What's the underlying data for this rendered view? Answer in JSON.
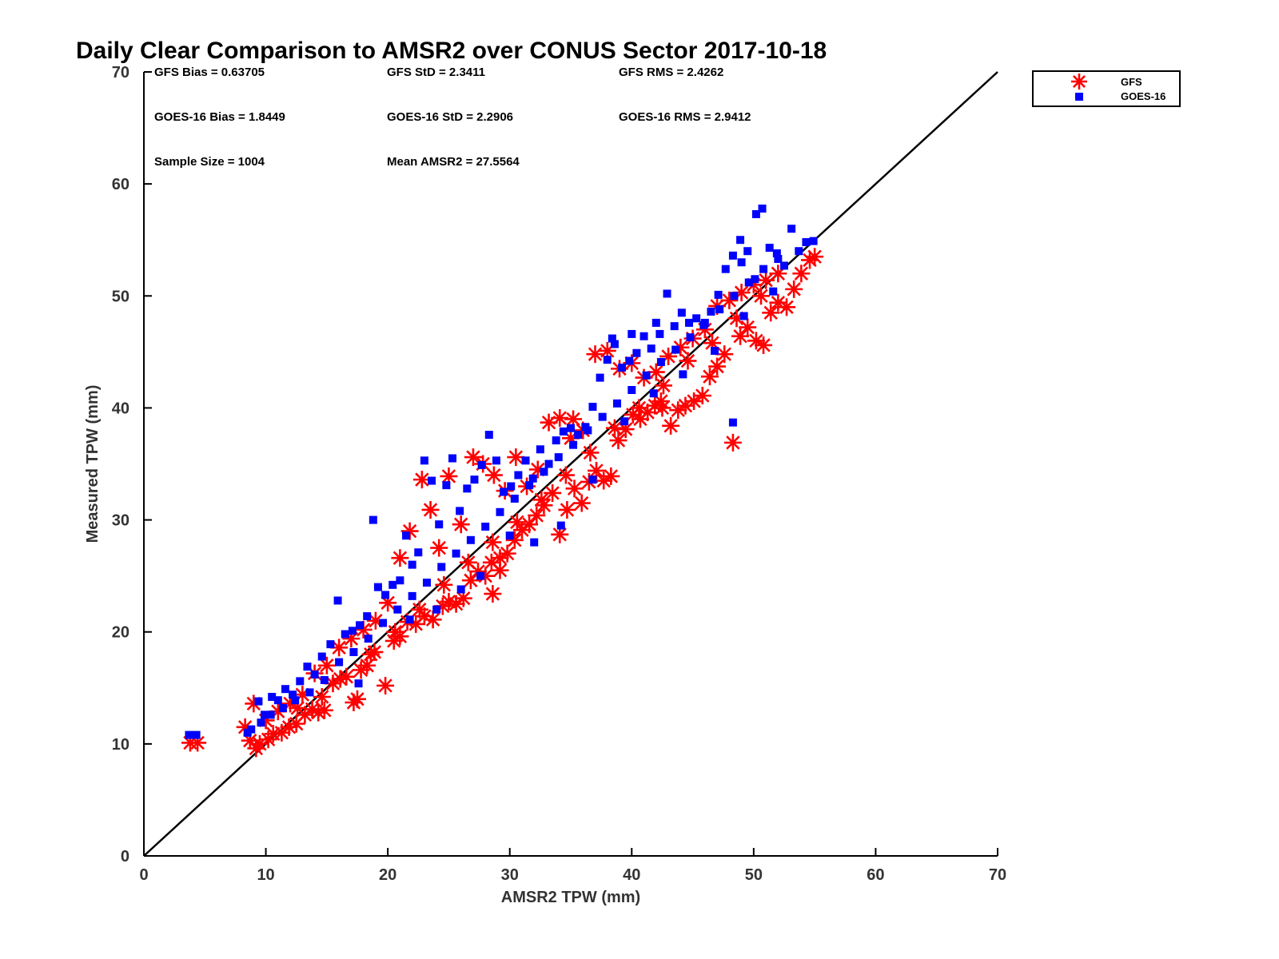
{
  "chart_data": {
    "type": "scatter",
    "title": "Daily Clear Comparison to AMSR2 over CONUS Sector 2017-10-18",
    "xlabel": "AMSR2 TPW (mm)",
    "ylabel": "Measured TPW (mm)",
    "xlim": [
      0,
      70
    ],
    "ylim": [
      0,
      70
    ],
    "xticks": [
      0,
      10,
      20,
      30,
      40,
      50,
      60,
      70
    ],
    "yticks": [
      0,
      10,
      20,
      30,
      40,
      50,
      60,
      70
    ],
    "grid": false,
    "legend_position": "outside-top-right",
    "reference_line": {
      "from": [
        0,
        0
      ],
      "to": [
        70,
        70
      ],
      "color": "#000000",
      "label": "1:1 line"
    },
    "stats": [
      {
        "id": "gfs-bias",
        "text": "GFS Bias = 0.63705"
      },
      {
        "id": "gfs-std",
        "text": "GFS StD = 2.3411"
      },
      {
        "id": "gfs-rms",
        "text": "GFS RMS = 2.4262"
      },
      {
        "id": "goes-bias",
        "text": "GOES-16 Bias = 1.8449"
      },
      {
        "id": "goes-std",
        "text": "GOES-16 StD = 2.2906"
      },
      {
        "id": "goes-rms",
        "text": "GOES-16 RMS = 2.9412"
      },
      {
        "id": "sample-size",
        "text": "Sample Size = 1004"
      },
      {
        "id": "mean-amsr2",
        "text": "Mean AMSR2 = 27.5564"
      }
    ],
    "series": [
      {
        "name": "GFS",
        "marker": "asterisk",
        "color": "#ff0000",
        "points": [
          [
            3.8,
            10.1
          ],
          [
            4.4,
            10.1
          ],
          [
            8.7,
            10.3
          ],
          [
            9.2,
            9.6
          ],
          [
            9.5,
            10.0
          ],
          [
            10.2,
            10.4
          ],
          [
            10.6,
            10.9
          ],
          [
            11.3,
            11.0
          ],
          [
            11.9,
            11.5
          ],
          [
            12.5,
            11.8
          ],
          [
            13.2,
            12.6
          ],
          [
            13.8,
            13.1
          ],
          [
            14.3,
            12.8
          ],
          [
            14.8,
            13.0
          ],
          [
            15.5,
            15.4
          ],
          [
            16.1,
            15.8
          ],
          [
            17.2,
            13.7
          ],
          [
            17.5,
            14.0
          ],
          [
            17.8,
            16.6
          ],
          [
            18.3,
            17.0
          ],
          [
            18.9,
            18.2
          ],
          [
            19.8,
            15.2
          ],
          [
            20.5,
            19.2
          ],
          [
            21.0,
            19.6
          ],
          [
            21.6,
            20.9
          ],
          [
            22.3,
            20.7
          ],
          [
            23.0,
            21.4
          ],
          [
            23.7,
            21.1
          ],
          [
            24.5,
            22.3
          ],
          [
            25.0,
            22.7
          ],
          [
            25.6,
            22.5
          ],
          [
            26.2,
            23.0
          ],
          [
            26.8,
            24.6
          ],
          [
            27.4,
            25.4
          ],
          [
            28.0,
            25.0
          ],
          [
            28.5,
            26.2
          ],
          [
            29.2,
            25.5
          ],
          [
            29.8,
            27.0
          ],
          [
            30.4,
            28.2
          ],
          [
            31.0,
            29.1
          ],
          [
            31.6,
            29.6
          ],
          [
            32.2,
            30.4
          ],
          [
            32.8,
            31.3
          ],
          [
            33.5,
            32.4
          ],
          [
            34.1,
            28.7
          ],
          [
            34.7,
            30.9
          ],
          [
            35.3,
            32.8
          ],
          [
            35.9,
            31.5
          ],
          [
            36.5,
            33.4
          ],
          [
            37.1,
            34.4
          ],
          [
            37.7,
            33.5
          ],
          [
            38.3,
            33.9
          ],
          [
            38.9,
            37.1
          ],
          [
            39.5,
            38.1
          ],
          [
            40.1,
            39.4
          ],
          [
            40.7,
            39.0
          ],
          [
            41.3,
            39.6
          ],
          [
            41.9,
            40.2
          ],
          [
            42.5,
            40.0
          ],
          [
            43.2,
            38.4
          ],
          [
            43.8,
            39.8
          ],
          [
            44.4,
            40.2
          ],
          [
            45.1,
            40.6
          ],
          [
            45.8,
            41.1
          ],
          [
            46.4,
            42.8
          ],
          [
            47.0,
            43.7
          ],
          [
            47.6,
            44.8
          ],
          [
            48.3,
            36.9
          ],
          [
            48.9,
            46.4
          ],
          [
            49.5,
            47.2
          ],
          [
            50.2,
            46.0
          ],
          [
            50.8,
            45.6
          ],
          [
            51.4,
            48.5
          ],
          [
            52.0,
            49.4
          ],
          [
            52.7,
            49.0
          ],
          [
            53.3,
            50.6
          ],
          [
            53.9,
            52.0
          ],
          [
            54.6,
            53.2
          ],
          [
            55.0,
            53.5
          ],
          [
            8.3,
            11.5
          ],
          [
            9.0,
            13.6
          ],
          [
            10.0,
            12.1
          ],
          [
            11.0,
            12.9
          ],
          [
            12.0,
            13.6
          ],
          [
            13.0,
            14.4
          ],
          [
            14.0,
            16.3
          ],
          [
            15.0,
            17.0
          ],
          [
            16.0,
            18.6
          ],
          [
            17.0,
            19.4
          ],
          [
            18.0,
            20.2
          ],
          [
            19.0,
            21.0
          ],
          [
            20.0,
            22.6
          ],
          [
            21.0,
            26.6
          ],
          [
            21.8,
            29.0
          ],
          [
            22.8,
            33.6
          ],
          [
            23.5,
            30.9
          ],
          [
            24.2,
            27.5
          ],
          [
            25.0,
            33.9
          ],
          [
            26.0,
            29.6
          ],
          [
            27.0,
            35.6
          ],
          [
            27.8,
            35.0
          ],
          [
            28.7,
            34.0
          ],
          [
            29.6,
            32.6
          ],
          [
            30.5,
            35.6
          ],
          [
            31.4,
            33.0
          ],
          [
            32.3,
            34.5
          ],
          [
            33.2,
            38.7
          ],
          [
            34.1,
            39.1
          ],
          [
            35.0,
            37.3
          ],
          [
            36.0,
            38.0
          ],
          [
            37.0,
            44.8
          ],
          [
            38.0,
            45.1
          ],
          [
            39.0,
            43.5
          ],
          [
            40.0,
            44.0
          ],
          [
            41.0,
            42.7
          ],
          [
            42.0,
            43.2
          ],
          [
            43.0,
            44.6
          ],
          [
            44.0,
            45.4
          ],
          [
            45.0,
            46.2
          ],
          [
            46.0,
            47.0
          ],
          [
            47.0,
            49.1
          ],
          [
            48.0,
            49.6
          ],
          [
            49.0,
            50.3
          ],
          [
            50.0,
            51.0
          ],
          [
            51.0,
            51.4
          ],
          [
            52.0,
            52.0
          ],
          [
            12.6,
            13.2
          ],
          [
            14.6,
            14.2
          ],
          [
            16.6,
            16.0
          ],
          [
            18.6,
            18.0
          ],
          [
            20.6,
            20.0
          ],
          [
            22.6,
            22.0
          ],
          [
            24.6,
            24.2
          ],
          [
            26.6,
            26.2
          ],
          [
            28.6,
            28.0
          ],
          [
            30.6,
            29.8
          ],
          [
            32.6,
            31.8
          ],
          [
            34.6,
            34.0
          ],
          [
            36.6,
            36.0
          ],
          [
            38.6,
            38.2
          ],
          [
            40.6,
            40.0
          ],
          [
            42.6,
            42.0
          ],
          [
            44.6,
            44.2
          ],
          [
            46.6,
            45.8
          ],
          [
            48.6,
            48.0
          ],
          [
            50.6,
            50.0
          ],
          [
            28.6,
            23.4
          ],
          [
            29.2,
            26.6
          ],
          [
            35.2,
            39.0
          ],
          [
            42.4,
            40.6
          ]
        ]
      },
      {
        "name": "GOES-16",
        "marker": "square",
        "color": "#0000ff",
        "points": [
          [
            3.7,
            10.8
          ],
          [
            4.3,
            10.8
          ],
          [
            8.8,
            11.3
          ],
          [
            9.4,
            13.8
          ],
          [
            9.9,
            12.6
          ],
          [
            10.5,
            14.2
          ],
          [
            11.0,
            13.9
          ],
          [
            11.6,
            14.9
          ],
          [
            12.2,
            14.4
          ],
          [
            12.8,
            15.6
          ],
          [
            13.4,
            16.9
          ],
          [
            14.0,
            16.2
          ],
          [
            14.6,
            17.8
          ],
          [
            15.3,
            18.9
          ],
          [
            15.9,
            22.8
          ],
          [
            16.5,
            19.8
          ],
          [
            17.1,
            20.1
          ],
          [
            17.7,
            20.6
          ],
          [
            18.3,
            21.4
          ],
          [
            18.8,
            30.0
          ],
          [
            19.2,
            24.0
          ],
          [
            19.8,
            23.3
          ],
          [
            20.4,
            24.2
          ],
          [
            21.0,
            24.6
          ],
          [
            21.5,
            28.6
          ],
          [
            22.0,
            26.0
          ],
          [
            22.5,
            27.1
          ],
          [
            23.0,
            35.3
          ],
          [
            23.6,
            33.5
          ],
          [
            24.2,
            29.6
          ],
          [
            24.8,
            33.1
          ],
          [
            25.3,
            35.5
          ],
          [
            25.9,
            30.8
          ],
          [
            26.5,
            32.8
          ],
          [
            27.1,
            33.6
          ],
          [
            27.7,
            34.9
          ],
          [
            28.3,
            37.6
          ],
          [
            28.9,
            35.3
          ],
          [
            29.5,
            32.5
          ],
          [
            30.1,
            33.0
          ],
          [
            30.7,
            34.0
          ],
          [
            31.3,
            35.3
          ],
          [
            31.9,
            33.7
          ],
          [
            32.5,
            36.3
          ],
          [
            33.2,
            35.0
          ],
          [
            33.8,
            37.1
          ],
          [
            34.4,
            37.9
          ],
          [
            35.0,
            38.2
          ],
          [
            35.6,
            37.6
          ],
          [
            36.2,
            38.3
          ],
          [
            36.8,
            40.1
          ],
          [
            37.4,
            42.7
          ],
          [
            38.0,
            44.3
          ],
          [
            38.6,
            45.7
          ],
          [
            39.2,
            43.6
          ],
          [
            39.8,
            44.2
          ],
          [
            40.4,
            44.9
          ],
          [
            41.0,
            46.4
          ],
          [
            41.6,
            45.3
          ],
          [
            42.3,
            46.6
          ],
          [
            42.9,
            50.2
          ],
          [
            43.5,
            47.3
          ],
          [
            44.1,
            48.5
          ],
          [
            44.7,
            47.6
          ],
          [
            45.3,
            48.0
          ],
          [
            45.9,
            47.4
          ],
          [
            46.5,
            48.6
          ],
          [
            47.1,
            50.1
          ],
          [
            47.7,
            52.4
          ],
          [
            48.3,
            53.6
          ],
          [
            48.3,
            38.7
          ],
          [
            48.9,
            55.0
          ],
          [
            49.5,
            54.0
          ],
          [
            50.1,
            51.5
          ],
          [
            50.7,
            57.8
          ],
          [
            51.3,
            54.3
          ],
          [
            51.9,
            53.8
          ],
          [
            52.5,
            52.7
          ],
          [
            53.1,
            56.0
          ],
          [
            53.7,
            54.0
          ],
          [
            54.3,
            54.8
          ],
          [
            54.9,
            54.9
          ],
          [
            50.2,
            57.3
          ],
          [
            8.5,
            11.0
          ],
          [
            9.6,
            11.9
          ],
          [
            10.4,
            12.6
          ],
          [
            11.4,
            13.2
          ],
          [
            12.4,
            13.9
          ],
          [
            13.6,
            14.6
          ],
          [
            14.8,
            15.7
          ],
          [
            16.0,
            17.3
          ],
          [
            17.2,
            18.2
          ],
          [
            18.4,
            19.4
          ],
          [
            19.6,
            20.8
          ],
          [
            20.8,
            22.0
          ],
          [
            22.0,
            23.2
          ],
          [
            23.2,
            24.4
          ],
          [
            24.4,
            25.8
          ],
          [
            25.6,
            27.0
          ],
          [
            26.8,
            28.2
          ],
          [
            28.0,
            29.4
          ],
          [
            29.2,
            30.7
          ],
          [
            30.4,
            31.9
          ],
          [
            31.6,
            33.1
          ],
          [
            32.8,
            34.3
          ],
          [
            34.0,
            35.6
          ],
          [
            35.2,
            36.7
          ],
          [
            36.4,
            38.0
          ],
          [
            37.6,
            39.2
          ],
          [
            38.8,
            40.4
          ],
          [
            40.0,
            41.6
          ],
          [
            41.2,
            42.9
          ],
          [
            42.4,
            44.1
          ],
          [
            43.6,
            45.2
          ],
          [
            44.8,
            46.3
          ],
          [
            46.0,
            47.6
          ],
          [
            47.2,
            48.8
          ],
          [
            48.4,
            50.0
          ],
          [
            49.6,
            51.2
          ],
          [
            50.8,
            52.4
          ],
          [
            52.0,
            53.3
          ],
          [
            17.6,
            15.4
          ],
          [
            21.8,
            21.1
          ],
          [
            24.0,
            22.0
          ],
          [
            26.0,
            23.8
          ],
          [
            27.6,
            25.0
          ],
          [
            30.0,
            28.6
          ],
          [
            32.0,
            28.0
          ],
          [
            34.2,
            29.5
          ],
          [
            36.8,
            33.6
          ],
          [
            39.4,
            38.8
          ],
          [
            41.8,
            41.3
          ],
          [
            44.2,
            43.0
          ],
          [
            46.8,
            45.1
          ],
          [
            49.2,
            48.2
          ],
          [
            51.6,
            50.4
          ],
          [
            40.0,
            46.6
          ],
          [
            42.0,
            47.6
          ],
          [
            38.4,
            46.2
          ],
          [
            49.0,
            53.0
          ]
        ]
      }
    ]
  }
}
